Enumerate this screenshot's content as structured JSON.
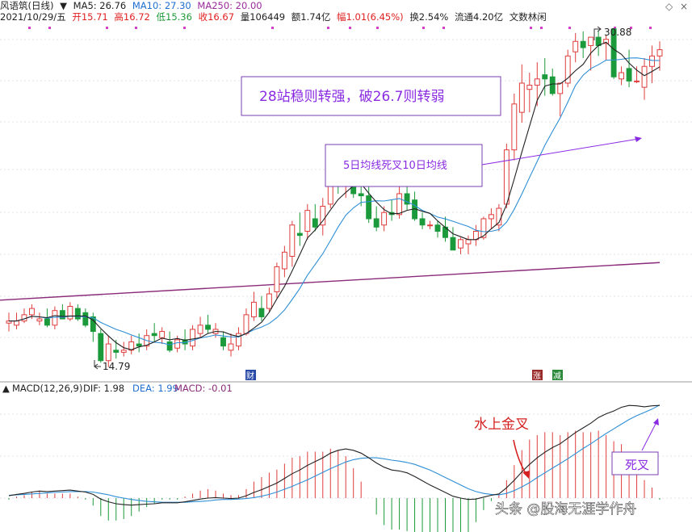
{
  "header": {
    "stock_name": "风语筑(日线)",
    "ma5": "MA5: 26.76",
    "ma10": "MA10: 27.30",
    "ma250": "MA250: 20.00",
    "date": "2021/10/29/五",
    "open": "开15.71",
    "high": "高16.72",
    "low": "低15.36",
    "close": "收16.67",
    "volume": "量106449",
    "amount": "额1.74亿",
    "change": "幅1.01(6.45%)",
    "turnover": "换2.54%",
    "float": "流通4.20亿",
    "extra": "文数林闲"
  },
  "window_controls": {
    "diamond": "◇",
    "close": "×"
  },
  "badges": {
    "cai": "财",
    "zhang": "涨",
    "jian": "减"
  },
  "annotations": {
    "box1": "28站稳则转强，破26.7则转弱",
    "box2": "5日均线死叉10日均线",
    "golden_cross": "水上金叉",
    "death_cross": "死叉",
    "watermark": "头条 @股海无涯学作舟"
  },
  "macd_header": {
    "name": "MACD(12,26,9)",
    "dif": "DIF: 1.98",
    "dea": "DEA: 1.99",
    "macd": "MACD: -0.01"
  },
  "colors": {
    "up": "#e03c3c",
    "down": "#1a9a3a",
    "ma5": "#222222",
    "ma10": "#2e8fd6",
    "ma250": "#8a2a78",
    "annot": "#8a2be2",
    "box_border": "#7a3fb0"
  },
  "chart_data": {
    "type": "candlestick",
    "price_range": [
      14.2,
      31.3
    ],
    "labels": {
      "high": "30.88",
      "low": "14.79"
    },
    "ohlc": [
      [
        16.9,
        17.4,
        16.5,
        17.0
      ],
      [
        16.8,
        17.4,
        16.6,
        17.0
      ],
      [
        17.0,
        17.6,
        16.9,
        17.3
      ],
      [
        17.3,
        17.8,
        17.1,
        17.6
      ],
      [
        17.0,
        17.4,
        16.8,
        17.1
      ],
      [
        17.1,
        17.6,
        16.7,
        16.8
      ],
      [
        16.8,
        17.7,
        16.6,
        17.5
      ],
      [
        17.5,
        17.8,
        17.1,
        17.1
      ],
      [
        17.1,
        17.9,
        17.0,
        17.7
      ],
      [
        17.6,
        17.8,
        17.0,
        17.1
      ],
      [
        17.4,
        17.6,
        16.7,
        16.8
      ],
      [
        17.2,
        17.4,
        16.0,
        16.5
      ],
      [
        16.4,
        16.6,
        15.0,
        15.1
      ],
      [
        15.1,
        16.3,
        14.79,
        15.9
      ],
      [
        15.6,
        16.1,
        15.2,
        15.5
      ],
      [
        15.5,
        16.0,
        15.3,
        15.6
      ],
      [
        15.6,
        16.3,
        15.4,
        16.0
      ],
      [
        15.9,
        16.4,
        15.5,
        15.8
      ],
      [
        15.8,
        16.6,
        15.6,
        16.3
      ],
      [
        16.4,
        16.9,
        16.0,
        16.3
      ],
      [
        16.2,
        16.7,
        15.9,
        16.5
      ],
      [
        16.0,
        16.5,
        15.5,
        15.6
      ],
      [
        15.7,
        16.3,
        15.5,
        16.1
      ],
      [
        16.1,
        16.6,
        15.6,
        15.9
      ],
      [
        15.8,
        16.8,
        15.6,
        16.6
      ],
      [
        16.4,
        17.2,
        16.2,
        16.8
      ],
      [
        16.8,
        17.3,
        16.4,
        16.6
      ],
      [
        16.4,
        16.9,
        16.2,
        16.6
      ],
      [
        16.2,
        16.5,
        15.6,
        15.8
      ],
      [
        15.6,
        16.4,
        15.3,
        15.9
      ],
      [
        15.8,
        16.7,
        15.6,
        16.4
      ],
      [
        16.4,
        17.6,
        16.3,
        17.3
      ],
      [
        17.2,
        18.4,
        17.0,
        17.9
      ],
      [
        17.6,
        18.2,
        17.0,
        17.2
      ],
      [
        17.6,
        18.6,
        17.4,
        18.3
      ],
      [
        18.4,
        19.8,
        18.1,
        19.6
      ],
      [
        19.5,
        20.6,
        19.1,
        20.3
      ],
      [
        20.1,
        21.8,
        19.6,
        21.6
      ],
      [
        21.2,
        22.2,
        20.6,
        21.1
      ],
      [
        21.3,
        22.6,
        20.9,
        22.3
      ],
      [
        21.9,
        22.6,
        21.3,
        21.5
      ],
      [
        21.6,
        22.9,
        21.1,
        22.5
      ],
      [
        22.6,
        24.4,
        22.4,
        24.2
      ],
      [
        24.1,
        24.6,
        23.1,
        23.6
      ],
      [
        23.5,
        24.5,
        22.9,
        24.0
      ],
      [
        24.0,
        24.3,
        22.9,
        23.1
      ],
      [
        23.1,
        23.6,
        22.5,
        23.0
      ],
      [
        23.0,
        23.5,
        21.7,
        21.9
      ],
      [
        21.9,
        22.5,
        21.3,
        21.5
      ],
      [
        21.6,
        22.5,
        21.3,
        22.2
      ],
      [
        22.2,
        22.8,
        21.8,
        22.1
      ],
      [
        22.1,
        23.5,
        21.9,
        23.1
      ],
      [
        23.1,
        23.6,
        22.3,
        22.6
      ],
      [
        22.8,
        23.2,
        21.8,
        21.9
      ],
      [
        21.9,
        22.2,
        21.4,
        21.6
      ],
      [
        21.6,
        21.8,
        21.4,
        21.6
      ],
      [
        21.6,
        21.8,
        21.0,
        21.3
      ],
      [
        21.5,
        22.0,
        20.8,
        21.0
      ],
      [
        21.0,
        21.5,
        20.4,
        20.4
      ],
      [
        20.5,
        21.0,
        20.2,
        20.9
      ],
      [
        20.7,
        21.1,
        20.2,
        20.9
      ],
      [
        20.9,
        21.6,
        20.6,
        21.3
      ],
      [
        21.0,
        22.0,
        20.9,
        21.9
      ],
      [
        21.9,
        22.4,
        21.4,
        22.1
      ],
      [
        21.6,
        22.6,
        21.3,
        22.4
      ],
      [
        22.6,
        25.5,
        22.4,
        25.2
      ],
      [
        25.2,
        27.9,
        24.7,
        27.4
      ],
      [
        27.0,
        29.3,
        26.5,
        28.4
      ],
      [
        28.1,
        28.9,
        27.0,
        28.3
      ],
      [
        28.3,
        29.4,
        27.3,
        28.6
      ],
      [
        28.8,
        29.6,
        27.8,
        28.6
      ],
      [
        28.7,
        29.1,
        27.8,
        27.9
      ],
      [
        27.9,
        28.4,
        26.8,
        28.4
      ],
      [
        28.4,
        30.0,
        28.2,
        29.7
      ],
      [
        29.9,
        30.8,
        29.4,
        30.4
      ],
      [
        30.4,
        30.88,
        29.6,
        30.1
      ],
      [
        30.2,
        30.6,
        29.0,
        30.6
      ],
      [
        30.6,
        30.9,
        29.7,
        30.2
      ],
      [
        30.3,
        30.7,
        29.5,
        30.5
      ],
      [
        31.0,
        31.0,
        28.6,
        28.7
      ],
      [
        28.6,
        29.2,
        28.3,
        28.9
      ],
      [
        29.1,
        30.0,
        28.2,
        28.5
      ],
      [
        28.5,
        29.2,
        28.4,
        28.5
      ],
      [
        28.2,
        29.6,
        27.6,
        29.2
      ],
      [
        29.2,
        30.2,
        28.4,
        29.7
      ],
      [
        29.7,
        30.4,
        29.0,
        30.0
      ]
    ],
    "ma250": [
      18.0,
      19.8
    ],
    "macd": {
      "dif": [
        0.05,
        0.08,
        0.1,
        0.13,
        0.15,
        0.14,
        0.15,
        0.16,
        0.17,
        0.15,
        0.13,
        0.08,
        -0.02,
        -0.08,
        -0.12,
        -0.14,
        -0.15,
        -0.14,
        -0.13,
        -0.12,
        -0.1,
        -0.1,
        -0.1,
        -0.08,
        -0.05,
        -0.02,
        0.0,
        0.01,
        0.0,
        -0.01,
        0.0,
        0.05,
        0.12,
        0.18,
        0.25,
        0.32,
        0.42,
        0.52,
        0.6,
        0.7,
        0.78,
        0.86,
        0.96,
        1.02,
        1.05,
        1.02,
        0.96,
        0.86,
        0.75,
        0.66,
        0.6,
        0.58,
        0.54,
        0.46,
        0.37,
        0.28,
        0.2,
        0.12,
        0.04,
        0.0,
        -0.03,
        -0.02,
        0.02,
        0.06,
        0.09,
        0.22,
        0.38,
        0.56,
        0.72,
        0.86,
        0.98,
        1.08,
        1.16,
        1.28,
        1.4,
        1.5,
        1.6,
        1.72,
        1.8,
        1.86,
        1.94,
        1.98,
        1.97,
        1.95,
        1.97,
        1.98
      ],
      "dea": [
        0.06,
        0.07,
        0.08,
        0.09,
        0.1,
        0.11,
        0.12,
        0.13,
        0.14,
        0.14,
        0.14,
        0.13,
        0.1,
        0.07,
        0.03,
        0.0,
        -0.03,
        -0.05,
        -0.07,
        -0.08,
        -0.09,
        -0.09,
        -0.09,
        -0.09,
        -0.08,
        -0.07,
        -0.06,
        -0.04,
        -0.03,
        -0.03,
        -0.02,
        -0.01,
        0.01,
        0.04,
        0.08,
        0.13,
        0.19,
        0.25,
        0.32,
        0.39,
        0.47,
        0.55,
        0.63,
        0.7,
        0.77,
        0.82,
        0.85,
        0.86,
        0.86,
        0.84,
        0.81,
        0.79,
        0.76,
        0.72,
        0.66,
        0.6,
        0.52,
        0.44,
        0.36,
        0.28,
        0.2,
        0.14,
        0.1,
        0.08,
        0.07,
        0.1,
        0.16,
        0.24,
        0.33,
        0.44,
        0.54,
        0.64,
        0.74,
        0.84,
        0.95,
        1.06,
        1.16,
        1.27,
        1.38,
        1.48,
        1.58,
        1.68,
        1.76,
        1.83,
        1.9,
        1.99
      ]
    }
  }
}
